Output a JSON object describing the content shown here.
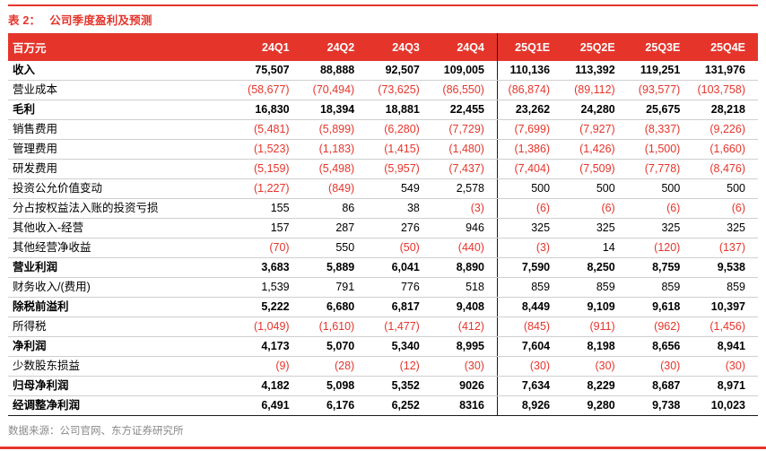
{
  "title_label": "表 2：",
  "title_text": "公司季度盈利及预测",
  "source": "数据来源：公司官网、东方证券研究所",
  "colors": {
    "accent": "#e5352b",
    "negative_text": "#e5352b",
    "header_text": "#ffffff",
    "source_text": "#8a8a8a"
  },
  "table": {
    "header": [
      "百万元",
      "24Q1",
      "24Q2",
      "24Q3",
      "24Q4",
      "25Q1E",
      "25Q2E",
      "25Q3E",
      "25Q4E"
    ],
    "rows": [
      {
        "label": "收入",
        "bold": true,
        "values": [
          "75,507",
          "88,888",
          "92,507",
          "109,005",
          "110,136",
          "113,392",
          "119,251",
          "131,976"
        ]
      },
      {
        "label": "营业成本",
        "bold": false,
        "values": [
          "(58,677)",
          "(70,494)",
          "(73,625)",
          "(86,550)",
          "(86,874)",
          "(89,112)",
          "(93,577)",
          "(103,758)"
        ]
      },
      {
        "label": "毛利",
        "bold": true,
        "values": [
          "16,830",
          "18,394",
          "18,881",
          "22,455",
          "23,262",
          "24,280",
          "25,675",
          "28,218"
        ]
      },
      {
        "label": "销售费用",
        "bold": false,
        "values": [
          "(5,481)",
          "(5,899)",
          "(6,280)",
          "(7,729)",
          "(7,699)",
          "(7,927)",
          "(8,337)",
          "(9,226)"
        ]
      },
      {
        "label": "管理费用",
        "bold": false,
        "values": [
          "(1,523)",
          "(1,183)",
          "(1,415)",
          "(1,480)",
          "(1,386)",
          "(1,426)",
          "(1,500)",
          "(1,660)"
        ]
      },
      {
        "label": "研发费用",
        "bold": false,
        "values": [
          "(5,159)",
          "(5,498)",
          "(5,957)",
          "(7,437)",
          "(7,404)",
          "(7,509)",
          "(7,778)",
          "(8,476)"
        ]
      },
      {
        "label": "投资公允价值变动",
        "bold": false,
        "values": [
          "(1,227)",
          "(849)",
          "549",
          "2,578",
          "500",
          "500",
          "500",
          "500"
        ]
      },
      {
        "label": "分占按权益法入账的投资亏损",
        "bold": false,
        "values": [
          "155",
          "86",
          "38",
          "(3)",
          "(6)",
          "(6)",
          "(6)",
          "(6)"
        ]
      },
      {
        "label": "其他收入-经营",
        "bold": false,
        "values": [
          "157",
          "287",
          "276",
          "946",
          "325",
          "325",
          "325",
          "325"
        ]
      },
      {
        "label": "其他经营净收益",
        "bold": false,
        "values": [
          "(70)",
          "550",
          "(50)",
          "(440)",
          "(3)",
          "14",
          "(120)",
          "(137)"
        ]
      },
      {
        "label": "营业利润",
        "bold": true,
        "values": [
          "3,683",
          "5,889",
          "6,041",
          "8,890",
          "7,590",
          "8,250",
          "8,759",
          "9,538"
        ]
      },
      {
        "label": "财务收入/(费用)",
        "bold": false,
        "values": [
          "1,539",
          "791",
          "776",
          "518",
          "859",
          "859",
          "859",
          "859"
        ]
      },
      {
        "label": "除税前溢利",
        "bold": true,
        "values": [
          "5,222",
          "6,680",
          "6,817",
          "9,408",
          "8,449",
          "9,109",
          "9,618",
          "10,397"
        ]
      },
      {
        "label": "所得税",
        "bold": false,
        "values": [
          "(1,049)",
          "(1,610)",
          "(1,477)",
          "(412)",
          "(845)",
          "(911)",
          "(962)",
          "(1,456)"
        ]
      },
      {
        "label": "净利润",
        "bold": true,
        "values": [
          "4,173",
          "5,070",
          "5,340",
          "8,995",
          "7,604",
          "8,198",
          "8,656",
          "8,941"
        ]
      },
      {
        "label": "少数股东损益",
        "bold": false,
        "values": [
          "(9)",
          "(28)",
          "(12)",
          "(30)",
          "(30)",
          "(30)",
          "(30)",
          "(30)"
        ]
      },
      {
        "label": "归母净利润",
        "bold": true,
        "values": [
          "4,182",
          "5,098",
          "5,352",
          "9026",
          "7,634",
          "8,229",
          "8,687",
          "8,971"
        ]
      },
      {
        "label": "经调整净利润",
        "bold": true,
        "values": [
          "6,491",
          "6,176",
          "6,252",
          "8316",
          "8,926",
          "9,280",
          "9,738",
          "10,023"
        ]
      }
    ]
  }
}
